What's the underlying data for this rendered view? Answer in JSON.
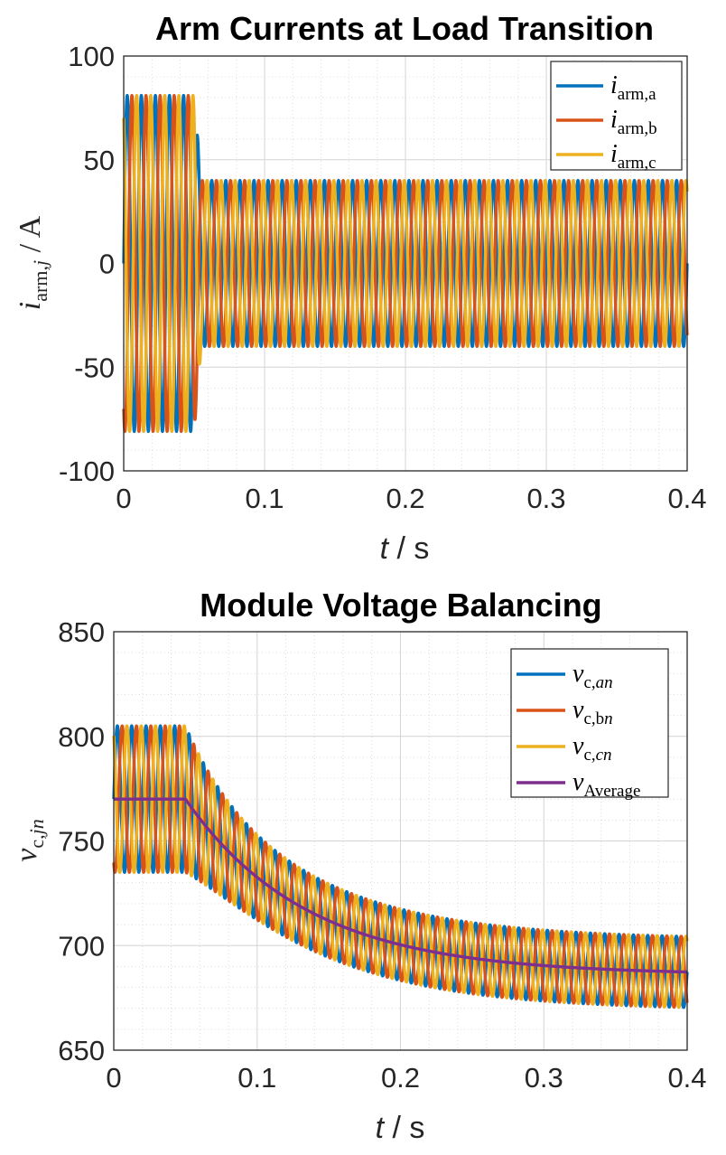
{
  "chart_data": [
    {
      "type": "line",
      "title": "Arm Currents at Load Transition",
      "xlabel_italic": "t",
      "xlabel_rest": " / s",
      "ylabel_main": "i",
      "ylabel_sub": "arm,",
      "ylabel_subvar": "j",
      "ylabel_rest": " / A",
      "xlim": [
        0,
        0.4
      ],
      "ylim": [
        -100,
        100
      ],
      "xticks": [
        "0",
        "0.1",
        "0.2",
        "0.3",
        "0.4"
      ],
      "yticks": [
        "100",
        "50",
        "0",
        "-50",
        "-100"
      ],
      "grid": true,
      "minor_grid": true,
      "legend_position": "top-right",
      "frequency_hz": 100,
      "transition_time_s": 0.05,
      "amplitude_before": 81,
      "amplitude_after": 40,
      "series": [
        {
          "name": "i_arm,a",
          "legend_main": "i",
          "legend_sub": "arm,a",
          "color": "#0072BD",
          "phase_deg": 0
        },
        {
          "name": "i_arm,b",
          "legend_main": "i",
          "legend_sub": "arm,b",
          "color": "#D95319",
          "phase_deg": -120
        },
        {
          "name": "i_arm,c",
          "legend_main": "i",
          "legend_sub": "arm,c",
          "color": "#EDB120",
          "phase_deg": 120
        }
      ]
    },
    {
      "type": "line",
      "title": "Module Voltage Balancing",
      "xlabel_italic": "t",
      "xlabel_rest": " / s",
      "ylabel_main": "v",
      "ylabel_sub": "c,",
      "ylabel_subvar": "jn",
      "ylabel_rest": "",
      "xlim": [
        0,
        0.4
      ],
      "ylim": [
        650,
        850
      ],
      "xticks": [
        "0",
        "0.1",
        "0.2",
        "0.3",
        "0.4"
      ],
      "yticks": [
        "850",
        "800",
        "750",
        "700",
        "650"
      ],
      "grid": true,
      "minor_grid": true,
      "legend_position": "top-right",
      "frequency_hz": 100,
      "transition_time_s": 0.05,
      "average_before": 770,
      "average_final": 686,
      "decay_time_constant_s": 0.085,
      "ripple_before": 35,
      "ripple_after": 17,
      "series": [
        {
          "name": "v_c,an",
          "legend_main": "v",
          "legend_sub": "c,",
          "legend_subvar": "an",
          "color": "#0072BD",
          "phase_deg": 0
        },
        {
          "name": "v_c,bn",
          "legend_main": "v",
          "legend_sub": "c,b",
          "legend_subvar": "n",
          "color": "#D95319",
          "phase_deg": -120
        },
        {
          "name": "v_c,cn",
          "legend_main": "v",
          "legend_sub": "c,",
          "legend_subvar": "cn",
          "color": "#EDB120",
          "phase_deg": 120
        },
        {
          "name": "v_Average",
          "legend_main": "v",
          "legend_sub": "Average",
          "legend_subvar": "",
          "color": "#7E2F8E",
          "phase_deg": null
        }
      ]
    }
  ]
}
